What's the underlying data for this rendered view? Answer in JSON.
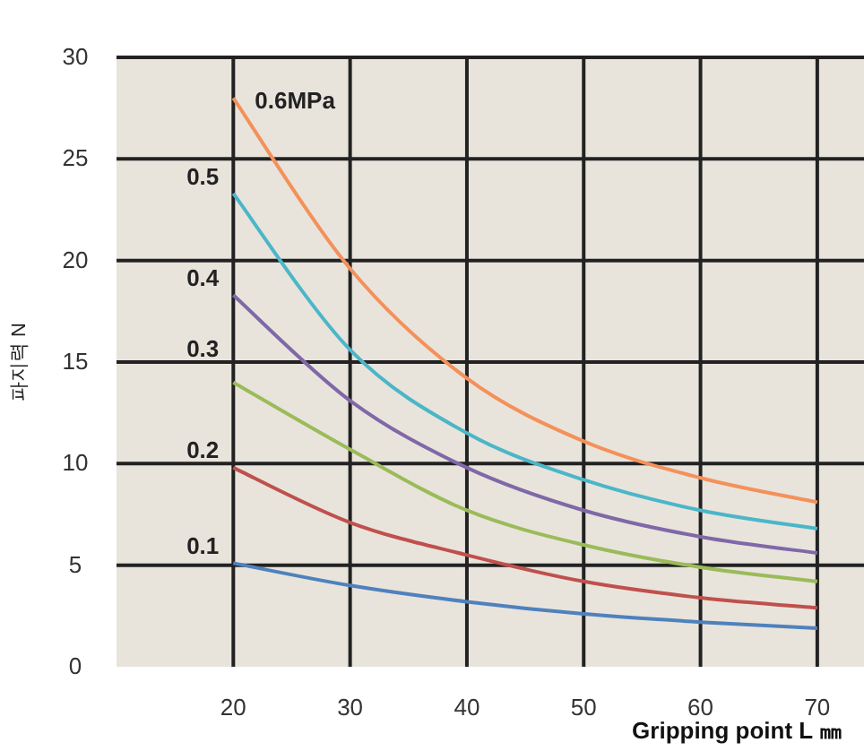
{
  "chart_data": {
    "type": "line",
    "xlabel": "Gripping point L ㎜",
    "ylabel": "파지력 N",
    "x": [
      20,
      30,
      40,
      50,
      60,
      70
    ],
    "xlim": [
      10,
      74
    ],
    "ylim": [
      0,
      30
    ],
    "xticks": [
      20,
      30,
      40,
      50,
      60,
      70
    ],
    "yticks": [
      0,
      5,
      10,
      15,
      20,
      25,
      30
    ],
    "grid": true,
    "marker": "none",
    "line_style": "solid",
    "series": [
      {
        "name": "0.6MPa",
        "color": "#f4915a",
        "values": [
          28,
          19.6,
          14.2,
          11.1,
          9.3,
          8.1
        ]
      },
      {
        "name": "0.5",
        "color": "#4bb6c8",
        "values": [
          23.3,
          15.6,
          11.5,
          9.2,
          7.7,
          6.8
        ]
      },
      {
        "name": "0.4",
        "color": "#8068a8",
        "values": [
          18.3,
          13.1,
          9.8,
          7.7,
          6.4,
          5.6
        ]
      },
      {
        "name": "0.3",
        "color": "#9bbb59",
        "values": [
          14,
          10.7,
          7.7,
          6.0,
          4.9,
          4.2
        ]
      },
      {
        "name": "0.2",
        "color": "#c0504d",
        "values": [
          9.8,
          7.1,
          5.5,
          4.2,
          3.4,
          2.9
        ]
      },
      {
        "name": "0.1",
        "color": "#4f81bd",
        "values": [
          5.1,
          4.0,
          3.2,
          2.6,
          2.2,
          1.9
        ]
      }
    ]
  }
}
